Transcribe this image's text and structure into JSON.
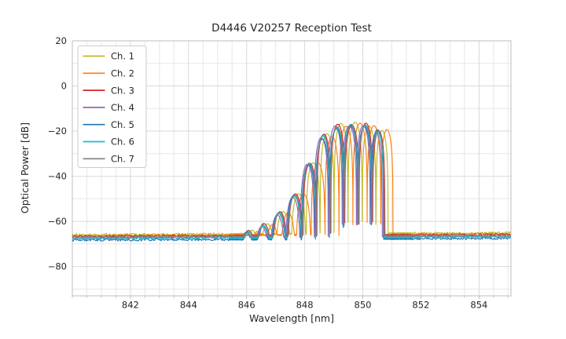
{
  "chart_data": {
    "type": "line",
    "title": "D4446 V20257 Reception Test",
    "xlabel": "Wavelength [nm]",
    "ylabel": "Optical Power [dB]",
    "xlim": [
      840.0,
      855.1
    ],
    "ylim": [
      -93,
      20
    ],
    "x_ticks": [
      842,
      844,
      846,
      848,
      850,
      852,
      854
    ],
    "x_tick_labels": [
      "842",
      "844",
      "846",
      "848",
      "850",
      "852",
      "854"
    ],
    "x_minor_step_nm": 0.5,
    "y_ticks": [
      20,
      0,
      -20,
      -40,
      -60,
      -80
    ],
    "y_tick_labels": [
      "20",
      "0",
      "−20",
      "−40",
      "−60",
      "−80"
    ],
    "y_minor_step_db": 10,
    "grid": "major+minor, light gray, on",
    "legend_position": "upper left",
    "noise_floor_db": -67,
    "floor_tilt_db_per_nm": 0.05,
    "envelope": {
      "description": "Shared lobed reception spectrum; value = max(noise floor, lobe envelope shifted per channel). Lobes modeled as peak + 20*log10(|sin|) between adjacent nulls.",
      "null_wavelengths_nm": [
        845.8,
        846.32,
        846.86,
        847.4,
        847.92,
        848.4,
        848.88,
        849.36,
        849.85,
        850.32,
        850.74
      ],
      "lobe_peaks_db": [
        -64.5,
        -61.5,
        -56.5,
        -48.5,
        -34.5,
        -22.5,
        -18.0,
        -17.3,
        -17.8,
        -20.0
      ]
    },
    "series": [
      {
        "name": "Ch. 1",
        "color": "#bcbd22",
        "shift_nm": 0.13,
        "floor_db": -65.9,
        "peak_adj_db": 0.7
      },
      {
        "name": "Ch. 2",
        "color": "#ff7f0e",
        "shift_nm": 0.3,
        "floor_db": -66.4,
        "peak_adj_db": 0.3
      },
      {
        "name": "Ch. 3",
        "color": "#d62728",
        "shift_nm": 0.02,
        "floor_db": -66.6,
        "peak_adj_db": 0.5
      },
      {
        "name": "Ch. 4",
        "color": "#9467bd",
        "shift_nm": -0.07,
        "floor_db": -67.3,
        "peak_adj_db": -0.5
      },
      {
        "name": "Ch. 5",
        "color": "#1f77b4",
        "shift_nm": -0.03,
        "floor_db": -68.3,
        "peak_adj_db": -0.2
      },
      {
        "name": "Ch. 6",
        "color": "#17becf",
        "shift_nm": -0.01,
        "floor_db": -67.6,
        "peak_adj_db": -0.4
      },
      {
        "name": "Ch. 7",
        "color": "#7f7f7f",
        "shift_nm": 0.0,
        "floor_db": -67.0,
        "peak_adj_db": 0.4
      }
    ],
    "styles": {
      "background": "#ffffff",
      "axis_color": "#c9c9c9",
      "grid_major_color": "#d9d9d9",
      "grid_minor_color": "#e7e7e7",
      "tick_mark_color": "#b5b5b5",
      "text_color": "#262626",
      "legend_border_color": "#cccccc",
      "line_width": 1.15
    }
  }
}
